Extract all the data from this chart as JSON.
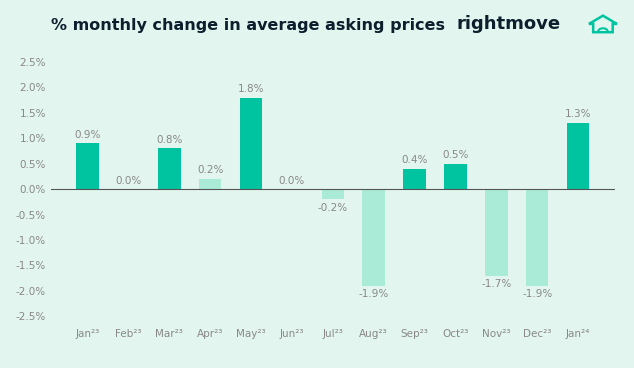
{
  "categories": [
    "Jan²³",
    "Feb²³",
    "Mar²³",
    "Apr²³",
    "May²³",
    "Jun²³",
    "Jul²³",
    "Aug²³",
    "Sep²³",
    "Oct²³",
    "Nov²³",
    "Dec²³",
    "Jan²⁴"
  ],
  "values": [
    0.9,
    0.0,
    0.8,
    0.2,
    1.8,
    0.0,
    -0.2,
    -1.9,
    0.4,
    0.5,
    -1.7,
    -1.9,
    1.3
  ],
  "dark_teal": "#00c4a0",
  "light_teal": "#aaebd8",
  "dark_bar_indices": [
    0,
    2,
    4,
    8,
    9,
    12
  ],
  "title": "% monthly change in average asking prices",
  "title_fontsize": 11.5,
  "title_color": "#0d1f2d",
  "background_color": "#e2f5ef",
  "ylim": [
    -2.65,
    2.85
  ],
  "yticks": [
    -2.5,
    -2.0,
    -1.5,
    -1.0,
    -0.5,
    0.0,
    0.5,
    1.0,
    1.5,
    2.0,
    2.5
  ],
  "label_fontsize": 7.5,
  "tick_fontsize": 7.5,
  "tick_color": "#888888",
  "zero_line_color": "#555555",
  "logo_text": "rightmove",
  "logo_fontsize": 13,
  "logo_color": "#0d1f2d",
  "logo_icon_color": "#00c4a0"
}
